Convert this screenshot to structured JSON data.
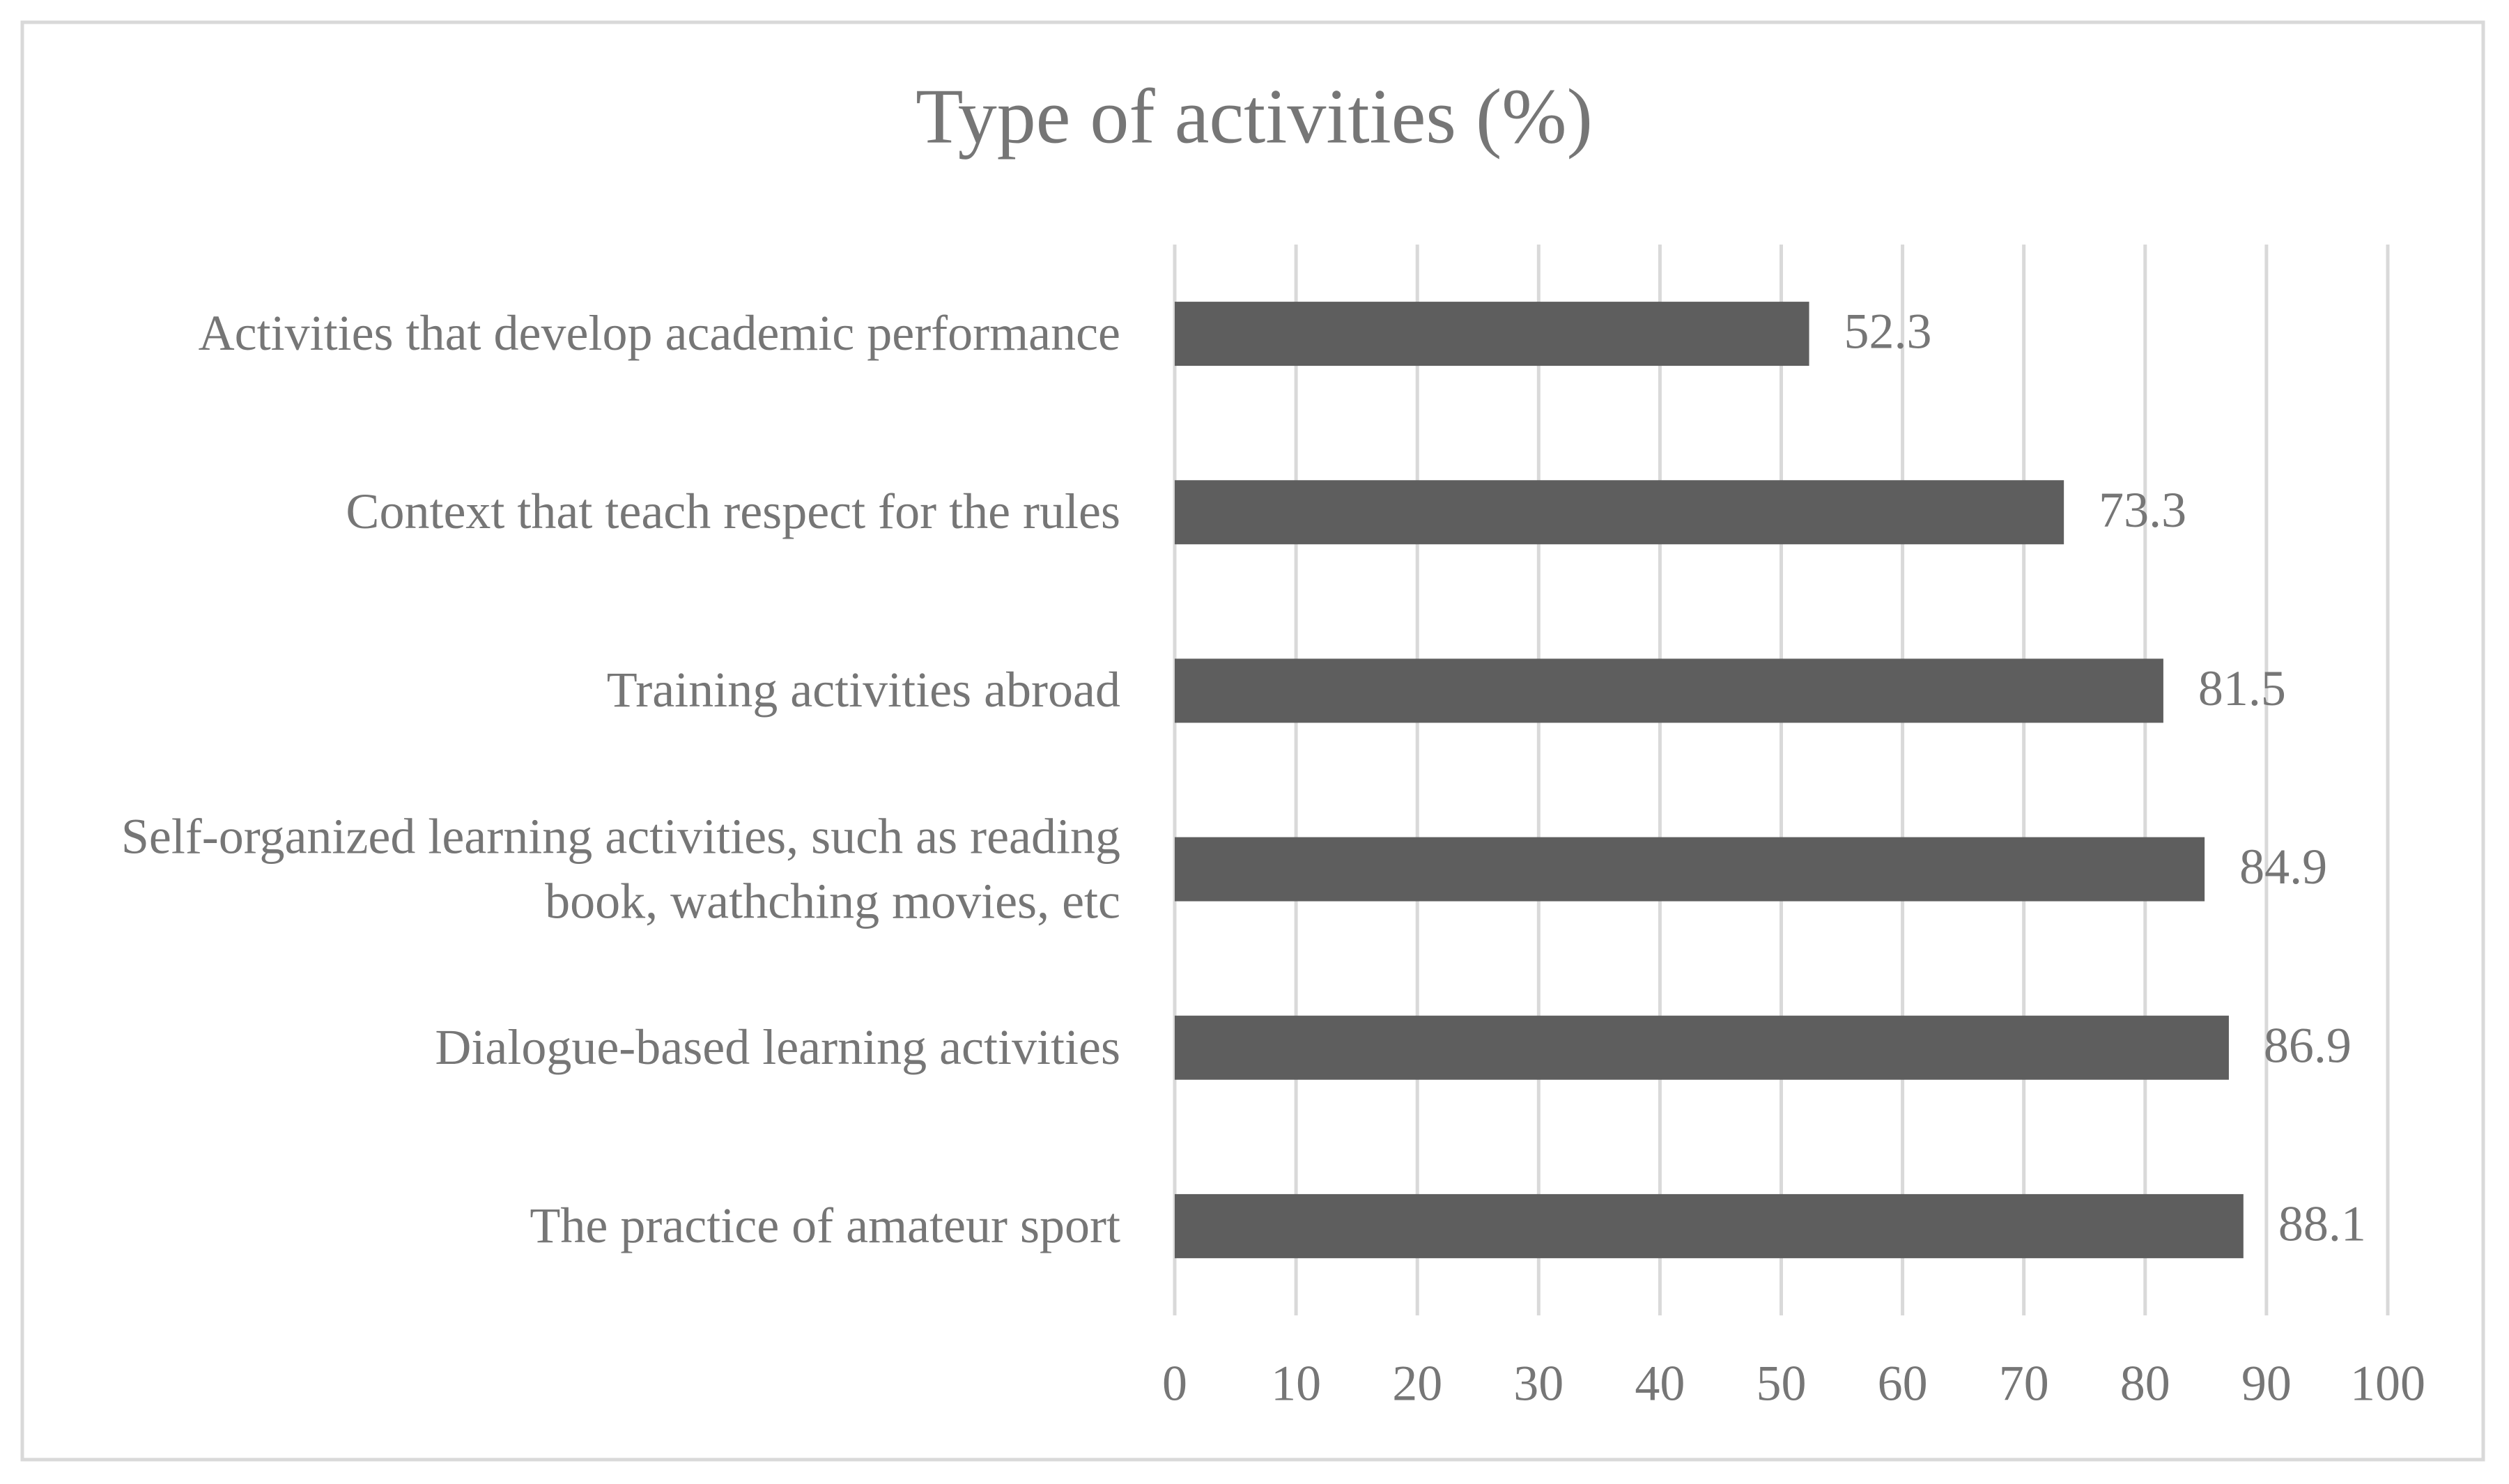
{
  "chart_data": {
    "type": "bar",
    "orientation": "horizontal",
    "title": "Type of activities (%)",
    "categories": [
      "Activities that develop academic performance",
      "Context that teach respect for the rules",
      "Training activities abroad",
      "Self-organized learning activities, such as reading book, wathching movies, etc",
      "Dialogue-based learning activities",
      "The practice of amateur sport"
    ],
    "values": [
      52.3,
      73.3,
      81.5,
      84.9,
      86.9,
      88.1
    ],
    "color": "#5e5e5e",
    "xlim": [
      0,
      100
    ],
    "xticks": [
      0,
      10,
      20,
      30,
      40,
      50,
      60,
      70,
      80,
      90,
      100
    ],
    "grid": true
  }
}
